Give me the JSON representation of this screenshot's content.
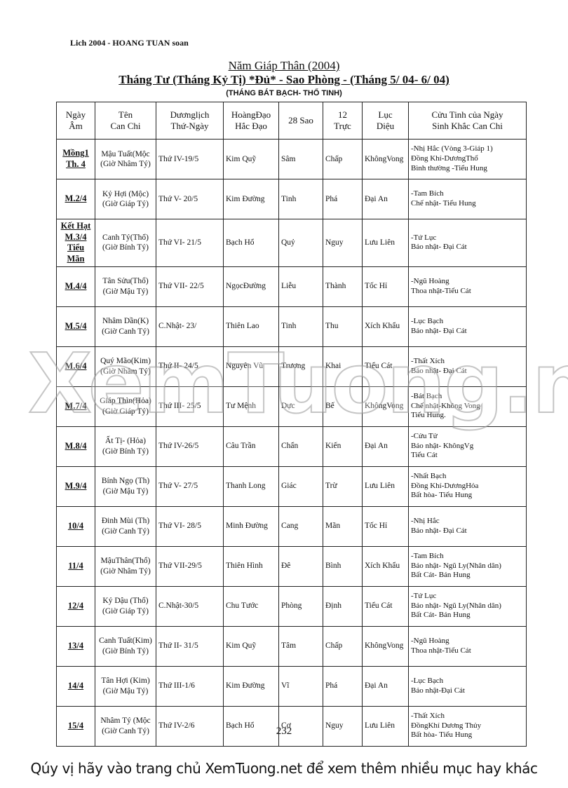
{
  "header": {
    "label": "Lich 2004 - HOANG TUAN soan"
  },
  "title": "Năm Giáp Thân (2004)",
  "subtitle": "Tháng Tư (Tháng Kỷ Tị) *Đủ* - Sao Phòng - (Tháng 5/ 04- 6/ 04)",
  "note": "(THÁNG BÁT BẠCH- THỔ TINH)",
  "table": {
    "headers": [
      "Ngày\nÂm",
      "Tên\nCan Chi",
      "Dươnglịch\nThứ-Ngày",
      "HoàngĐạo\nHắc Đạo",
      "28 Sao",
      "12\nTrực",
      "Lục\nDiệu",
      "Cửu Tinh của Ngày\nSinh Khắc Can Chi"
    ],
    "rows": [
      [
        "Mồng1\nTh. 4",
        "Mậu Tuất(Mộc\n(Giờ Nhâm Tý)",
        "Thứ IV-19/5",
        "Kim Quỹ",
        "Sâm",
        "Chấp",
        "KhôngVong",
        "-Nhị Hắc (Vòng 3-Giáp 1)\nĐồng Khí-DươngThổ\nBình thường -Tiểu Hung"
      ],
      [
        "M.2/4",
        "Kỷ Hợi (Mộc)\n(Giờ Giáp Tý)",
        "Thứ V- 20/5",
        "Kim Đường",
        "Tinh",
        "Phá",
        "Đại An",
        "-Tam Bích\nChế nhật- Tiểu Hung"
      ],
      [
        "Kết Hạt\nM.3/4\nTiểu Mãn",
        "Canh Tý(Thổ)\n(Giờ Bính Tý)",
        "Thứ VI- 21/5",
        "Bạch Hổ",
        "Quỷ",
        "Nguy",
        "Lưu Liên",
        "-Tứ Lục\nBảo nhật- Đại Cát"
      ],
      [
        "M.4/4",
        "Tân Sửu(Thổ)\n(Giờ Mậu Tý)",
        "Thứ VII- 22/5",
        "NgọcĐường",
        "Liễu",
        "Thành",
        "Tốc Hỉ",
        "-Ngũ Hoàng\nThoa nhật-Tiểu Cát"
      ],
      [
        "M.5/4",
        "Nhâm Dần(K)\n(Giờ Canh Tý)",
        "C.Nhật- 23/",
        "Thiên Lao",
        "Tinh",
        "Thu",
        "Xích Khẩu",
        "-Lục Bạch\nBảo nhật- Đại Cát"
      ],
      [
        "M.6/4",
        "Quý Mão(Kim)\n(Giờ Nhâm Tý)",
        "Thứ II- 24/5",
        "Nguyên Vũ",
        "Trương",
        "Khai",
        "Tiểu Cát",
        "-Thất Xích\nBảo nhật- Đại Cát"
      ],
      [
        "M.7/4",
        "Giáp Thìn(Hỏa)\n(Giờ Giáp Tý)",
        "Thứ III- 25/5",
        "Tư Mệnh",
        "Dực",
        "Bế",
        "KhôngVong",
        "-Bát Bạch\nChế nhật-Không Vong\nTiểu Hung."
      ],
      [
        "M.8/4",
        "Ất Tị- (Hỏa)\n(Giờ Bính Tý)",
        "Thứ IV-26/5",
        "Câu Trần",
        "Chẩn",
        "Kiến",
        "Đại An",
        "-Cửu Tử\nBảo nhật- KhôngVg\nTiểu Cát"
      ],
      [
        "M.9/4",
        "Bính Ngọ (Th)\n(Giờ Mậu Tý)",
        "Thứ V- 27/5",
        "Thanh Long",
        "Giác",
        "Trừ",
        "Lưu Liên",
        "-Nhất Bạch\nĐồng Khí-DươngHỏa\nBất hòa- Tiểu Hung"
      ],
      [
        "10/4",
        "Đinh Mùi (Th)\n(Giờ Canh Tý)",
        "Thứ VI- 28/5",
        "Minh Đường",
        "Cang",
        "Mãn",
        "Tốc Hỉ",
        "-Nhị Hắc\nBảo nhật- Đại Cát"
      ],
      [
        "11/4",
        "MậuThân(Thổ)\n(Giờ Nhâm Tý)",
        "Thứ VII-29/5",
        "Thiên Hình",
        "Đê",
        "Bình",
        "Xích Khẩu",
        "-Tam Bích\nBảo nhật- Ngũ Ly(Nhân dân)\nBất Cát- Bán Hung"
      ],
      [
        "12/4",
        "Kỷ Dậu (Thổ)\n(Giờ Giáp Tý)",
        "C.Nhật-30/5",
        "Chu Tước",
        "Phòng",
        "Định",
        "Tiểu Cát",
        "-Tứ Lục\nBảo nhật- Ngũ Ly(Nhân dân)\nBất Cát- Bán Hung"
      ],
      [
        "13/4",
        "Canh Tuất(Kim)\n(Giờ Bính Tý)",
        "Thứ II- 31/5",
        "Kim Quỹ",
        "Tâm",
        "Chấp",
        "KhôngVong",
        "-Ngũ Hoàng\nThoa nhật-Tiểu Cát"
      ],
      [
        "14/4",
        "Tân Hợi (Kim)\n(Giờ Mậu Tý)",
        "Thứ III-1/6",
        "Kim Đường",
        "Vĩ",
        "Phá",
        "Đại An",
        "-Lục Bạch\nBảo nhật-Đại Cát"
      ],
      [
        "15/4",
        "Nhâm Tý (Mộc\n(Giờ Canh Tý)",
        "Thứ IV-2/6",
        "Bạch Hổ",
        "Cơ",
        "Nguy",
        "Lưu Liên",
        "-Thất Xích\nĐồngKhí Dương Thủy\nBất hòa- Tiểu Hung"
      ]
    ]
  },
  "page_number": "232",
  "watermark": "XemTuong.net",
  "footer": "Qúy vị hãy vào trang chủ XemTuong.net để xem thêm nhiều mục hay khác"
}
